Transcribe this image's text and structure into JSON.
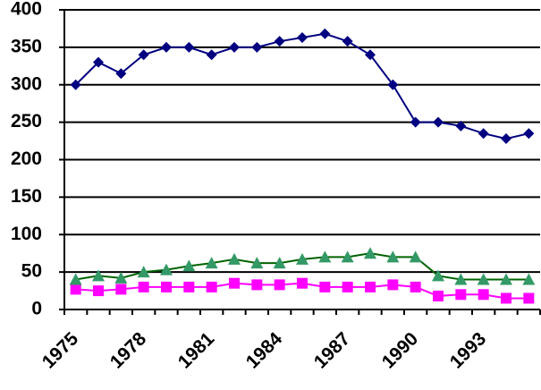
{
  "chart_data": {
    "type": "line",
    "categories": [
      "1975",
      null,
      null,
      "1978",
      null,
      null,
      "1981",
      null,
      null,
      "1984",
      null,
      null,
      "1987",
      null,
      null,
      "1990",
      null,
      null,
      "1993",
      null,
      null
    ],
    "series": [
      {
        "color": "#000080",
        "marker": "diamond",
        "values": [
          300,
          330,
          315,
          340,
          350,
          350,
          340,
          350,
          350,
          358,
          363,
          368,
          358,
          340,
          300,
          250,
          250,
          245,
          235,
          228,
          235
        ]
      },
      {
        "color": "#ff00ff",
        "marker": "square",
        "values": [
          27,
          25,
          27,
          30,
          30,
          30,
          30,
          35,
          33,
          33,
          35,
          30,
          30,
          30,
          33,
          30,
          18,
          20,
          20,
          15,
          15
        ]
      },
      {
        "color": "#339966",
        "marker": "triangle",
        "values": [
          40,
          45,
          42,
          50,
          53,
          58,
          62,
          67,
          62,
          62,
          67,
          70,
          70,
          75,
          70,
          70,
          45,
          40,
          40,
          40,
          40
        ]
      }
    ],
    "ylim": [
      0,
      400
    ],
    "yticks": [
      0,
      50,
      100,
      150,
      200,
      250,
      300,
      350,
      400
    ],
    "grid": true
  }
}
